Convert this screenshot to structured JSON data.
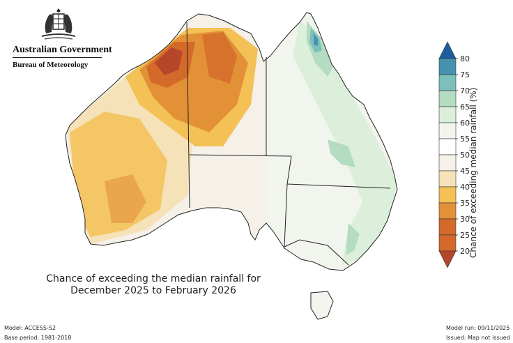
{
  "header": {
    "government": "Australian Government",
    "agency": "Bureau of Meteorology"
  },
  "map": {
    "caption_line1": "Chance of exceeding the median rainfall for",
    "caption_line2": "December 2025 to February 2026"
  },
  "legend": {
    "title": "Chance of exceeding median rainfall (%)",
    "ticks": [
      "20",
      "25",
      "30",
      "35",
      "40",
      "45",
      "50",
      "55",
      "60",
      "65",
      "70",
      "75",
      "80"
    ],
    "colors": [
      "#b5462a",
      "#d36a2a",
      "#e39137",
      "#f4c157",
      "#f6e2b8",
      "#f5f0e8",
      "#ffffff",
      "#f2f5ee",
      "#dcefdb",
      "#b4dcc1",
      "#7dbfbb",
      "#4593af",
      "#1d5f9c"
    ]
  },
  "footer": {
    "model": "Model: ACCESS-S2",
    "base_period": "Base period: 1981-2018",
    "model_run": "Model run: 09/11/2025",
    "issued": "Issued: Map not issued"
  }
}
